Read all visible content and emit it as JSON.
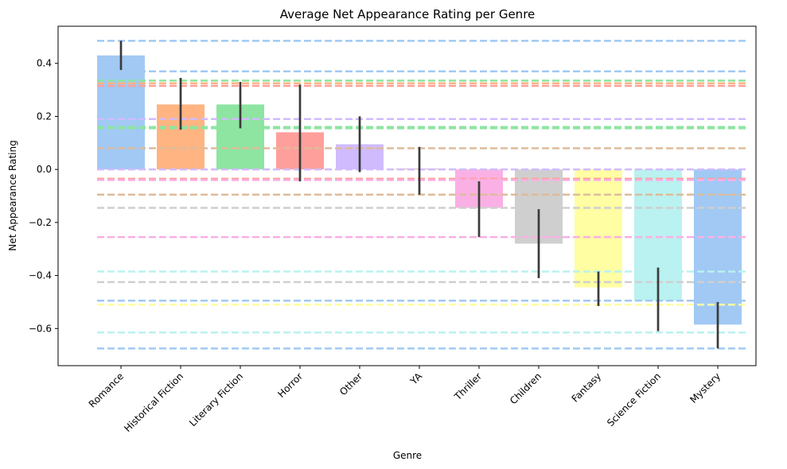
{
  "chart_data": {
    "type": "bar",
    "title": "Average Net Appearance Rating per Genre",
    "xlabel": "Genre",
    "ylabel": "Net Appearance Rating",
    "ylim": [
      -0.74,
      0.54
    ],
    "yticks": [
      -0.6,
      -0.4,
      -0.2,
      0.0,
      0.2,
      0.4
    ],
    "ytick_labels": [
      "−0.6",
      "−0.4",
      "−0.2",
      "0.0",
      "0.2",
      "0.4"
    ],
    "grid": false,
    "categories": [
      "Romance",
      "Historical Fiction",
      "Literary Fiction",
      "Horror",
      "Other",
      "YA",
      "Thriller",
      "Children",
      "Fantasy",
      "Science Fiction",
      "Mystery"
    ],
    "values": [
      0.43,
      0.245,
      0.245,
      0.14,
      0.095,
      0.003,
      -0.145,
      -0.28,
      -0.445,
      -0.495,
      -0.585
    ],
    "error_low": [
      0.375,
      0.15,
      0.155,
      -0.045,
      -0.01,
      -0.095,
      -0.255,
      -0.41,
      -0.515,
      -0.61,
      -0.675
    ],
    "error_high": [
      0.485,
      0.345,
      0.33,
      0.32,
      0.2,
      0.085,
      -0.045,
      -0.15,
      -0.385,
      -0.37,
      -0.5
    ],
    "colors": [
      "#a1c9f4",
      "#ffb482",
      "#8de5a1",
      "#ff9f9b",
      "#d0bbff",
      "#debb9b",
      "#fab0e4",
      "#cfcfcf",
      "#fffea3",
      "#b9f2f0",
      "#a1c9f4"
    ],
    "error_color": "#3b3b3b",
    "reference_lines": [
      {
        "y": 0.485,
        "color": "#a1c9f4"
      },
      {
        "y": 0.37,
        "color": "#a1c9f4"
      },
      {
        "y": 0.335,
        "color": "#8de5a1"
      },
      {
        "y": 0.325,
        "color": "#ffb482"
      },
      {
        "y": 0.315,
        "color": "#ff9f9b"
      },
      {
        "y": 0.19,
        "color": "#d0bbff"
      },
      {
        "y": 0.16,
        "color": "#8de5a1"
      },
      {
        "y": 0.155,
        "color": "#8de5a1"
      },
      {
        "y": 0.08,
        "color": "#debb9b"
      },
      {
        "y": 0.0,
        "color": "#d0bbff"
      },
      {
        "y": -0.035,
        "color": "#ff9f9b"
      },
      {
        "y": -0.04,
        "color": "#fab0e4"
      },
      {
        "y": -0.095,
        "color": "#debb9b"
      },
      {
        "y": -0.145,
        "color": "#cfcfcf"
      },
      {
        "y": -0.255,
        "color": "#fab0e4"
      },
      {
        "y": -0.385,
        "color": "#b9f2f0"
      },
      {
        "y": -0.425,
        "color": "#cfcfcf"
      },
      {
        "y": -0.495,
        "color": "#a1c9f4"
      },
      {
        "y": -0.51,
        "color": "#fffea3"
      },
      {
        "y": -0.615,
        "color": "#b9f2f0"
      },
      {
        "y": -0.675,
        "color": "#a1c9f4"
      }
    ]
  }
}
